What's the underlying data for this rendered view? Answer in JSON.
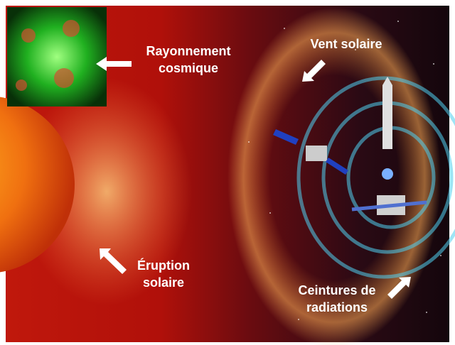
{
  "labels": {
    "cosmic": [
      "Rayonnement",
      "cosmique"
    ],
    "wind": [
      "Vent solaire"
    ],
    "eruption": [
      "Éruption",
      "solaire"
    ],
    "belts": [
      "Ceintures de",
      "radiations"
    ]
  }
}
